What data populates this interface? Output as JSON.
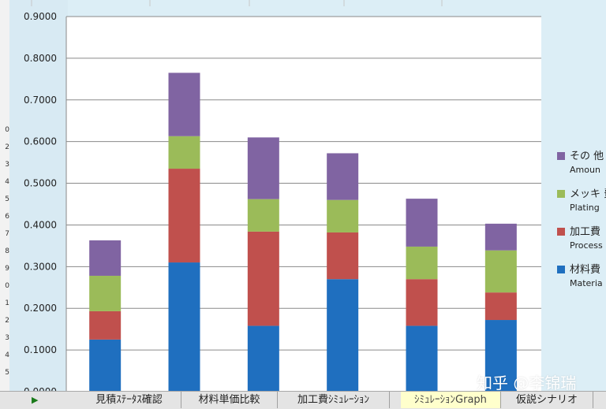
{
  "chart_data": {
    "type": "bar",
    "stacked": true,
    "categories": [
      "",
      "",
      "",
      "",
      "",
      ""
    ],
    "ylim": [
      0,
      0.9
    ],
    "yticks": [
      "0.0000",
      "0.1000",
      "0.2000",
      "0.3000",
      "0.4000",
      "0.5000",
      "0.6000",
      "0.7000",
      "0.8000",
      "0.9000"
    ],
    "grid": true,
    "legend_position": "right",
    "series": [
      {
        "name": "材料費",
        "sub": "Materia",
        "color": "#1f6fbf",
        "values": [
          0.125,
          0.31,
          0.158,
          0.27,
          0.158,
          0.172
        ]
      },
      {
        "name": "加工費",
        "sub": "Process",
        "color": "#c0504d",
        "values": [
          0.068,
          0.225,
          0.226,
          0.112,
          0.112,
          0.066
        ]
      },
      {
        "name": "メッキ 費",
        "sub": "Plating",
        "color": "#9bbb59",
        "values": [
          0.085,
          0.078,
          0.078,
          0.078,
          0.078,
          0.101
        ]
      },
      {
        "name": "その 他",
        "sub": "Amoun",
        "color": "#8064a2",
        "values": [
          0.085,
          0.152,
          0.148,
          0.112,
          0.115,
          0.064
        ]
      }
    ]
  },
  "sheet_tabs": {
    "nav": "▶",
    "tabs": [
      "見積ｽﾃｰﾀｽ確認",
      "材料単価比較",
      "加工費ｼﾐｭﾚｰｼｮﾝ",
      "ｼﾐｭﾚｰｼｮﾝGraph",
      "仮説シナリオ"
    ],
    "active_index": 3
  },
  "row_headers": [
    "0",
    "2",
    "3",
    "4",
    "5",
    "6",
    "7",
    "8",
    "9",
    "0",
    "1",
    "2",
    "3",
    "4",
    "5"
  ],
  "watermark": "知乎 @李锦瑞"
}
